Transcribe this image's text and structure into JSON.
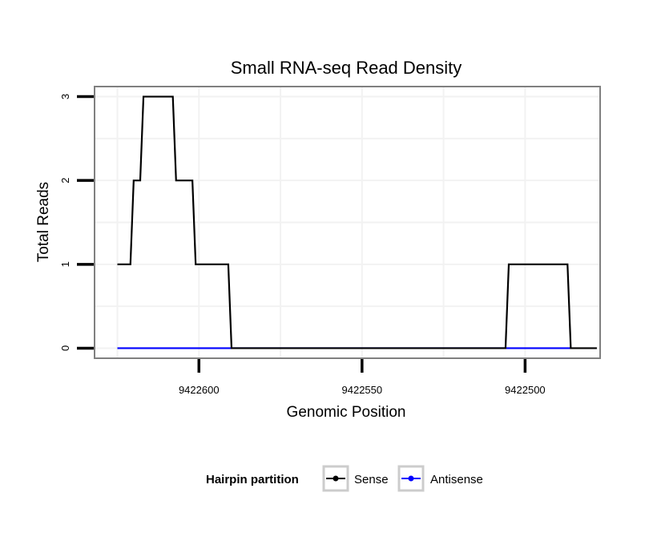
{
  "chart_data": {
    "type": "line",
    "title": "Small RNA-seq Read Density",
    "xlabel": "Genomic Position",
    "ylabel": "Total Reads",
    "x_reversed": true,
    "xlim": [
      9422632,
      9422477
    ],
    "ylim": [
      -0.12,
      3.12
    ],
    "x_ticks": [
      9422600,
      9422550,
      9422500
    ],
    "x_tick_labels": [
      "9422600",
      "9422550",
      "9422500"
    ],
    "y_ticks": [
      0,
      1,
      2,
      3
    ],
    "y_tick_labels": [
      "0",
      "1",
      "2",
      "3"
    ],
    "grid": true,
    "legend": {
      "title": "Hairpin partition",
      "position": "bottom",
      "entries": [
        "Sense",
        "Antisense"
      ]
    },
    "series": [
      {
        "name": "Sense",
        "color": "#000000",
        "points": [
          [
            9422625,
            1
          ],
          [
            9422621,
            1
          ],
          [
            9422620,
            2
          ],
          [
            9422618,
            2
          ],
          [
            9422617,
            3
          ],
          [
            9422608,
            3
          ],
          [
            9422607,
            2
          ],
          [
            9422602,
            2
          ],
          [
            9422601,
            1
          ],
          [
            9422591,
            1
          ],
          [
            9422590,
            0
          ],
          [
            9422506,
            0
          ],
          [
            9422505,
            1
          ],
          [
            9422487,
            1
          ],
          [
            9422486,
            0
          ],
          [
            9422478,
            0
          ]
        ]
      },
      {
        "name": "Antisense",
        "color": "#0000ff",
        "points": [
          [
            9422625,
            0
          ],
          [
            9422591,
            0
          ],
          [
            9422506,
            0
          ],
          [
            9422486,
            0
          ]
        ]
      }
    ]
  },
  "colors": {
    "panel_border": "#808080",
    "grid": "#f2f2f2",
    "legend_key_border": "#cccccc"
  }
}
